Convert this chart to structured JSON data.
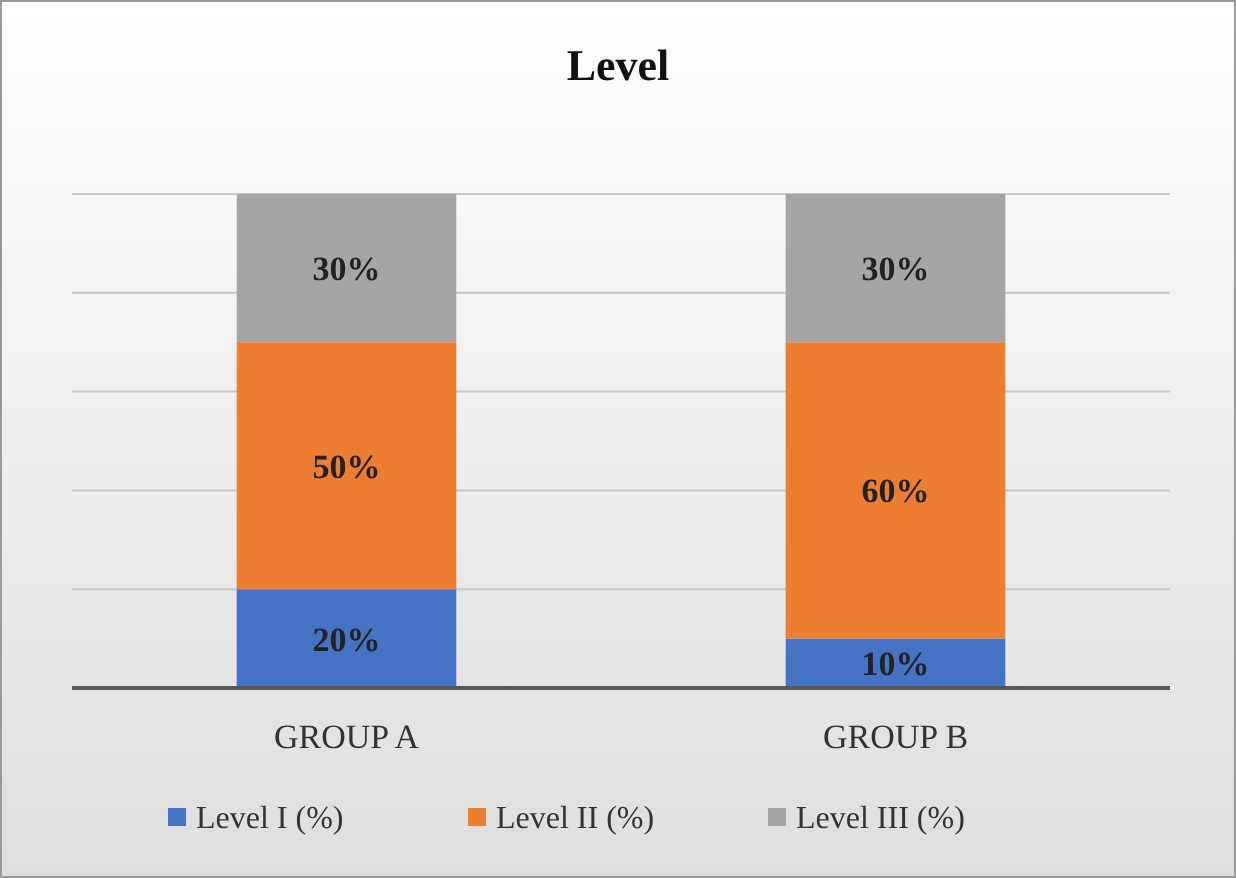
{
  "chart_data": {
    "type": "bar",
    "title": "Level",
    "categories": [
      "GROUP A",
      "GROUP B"
    ],
    "stacked": true,
    "ylim": [
      0,
      100
    ],
    "yticks": [
      {
        "value": 0,
        "label": null
      },
      {
        "value": 20,
        "label": null
      },
      {
        "value": 40,
        "label": null
      },
      {
        "value": 60,
        "label": null
      },
      {
        "value": 80,
        "label": null
      },
      {
        "value": 100,
        "label": null
      }
    ],
    "tick_labels": "x",
    "grid": "y",
    "legend": "bottom",
    "series": [
      {
        "name": "Level I (%)",
        "color": "#4472c4",
        "values": [
          20,
          10
        ],
        "value_labels": [
          "20%",
          "10%"
        ]
      },
      {
        "name": "Level II (%)",
        "color": "#ed7d31",
        "values": [
          50,
          60
        ],
        "value_labels": [
          "50%",
          "60%"
        ]
      },
      {
        "name": "Level III (%)",
        "color": "#a5a5a5",
        "values": [
          30,
          30
        ],
        "value_labels": [
          "30%",
          "30%"
        ]
      }
    ]
  }
}
